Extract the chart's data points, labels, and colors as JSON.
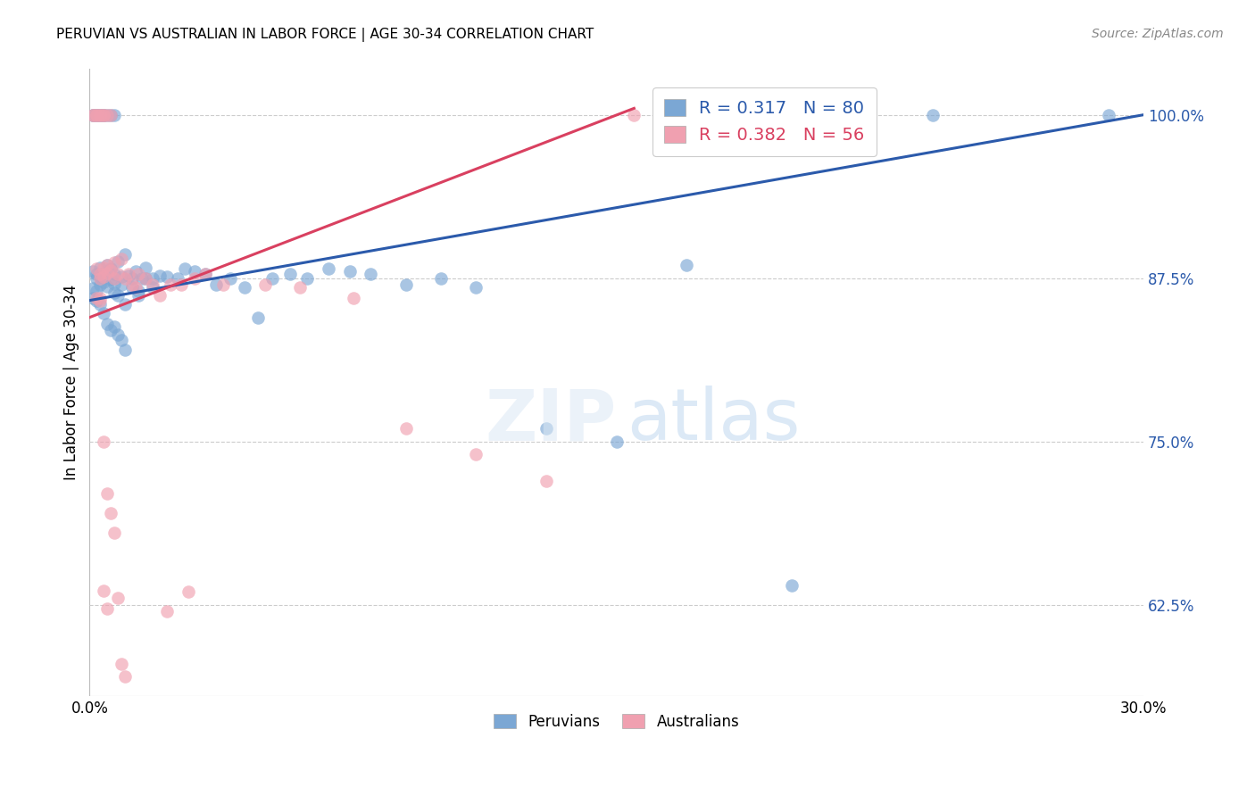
{
  "title": "PERUVIAN VS AUSTRALIAN IN LABOR FORCE | AGE 30-34 CORRELATION CHART",
  "source": "Source: ZipAtlas.com",
  "ylabel": "In Labor Force | Age 30-34",
  "blue_R": 0.317,
  "blue_N": 80,
  "pink_R": 0.382,
  "pink_N": 56,
  "blue_color": "#7ba7d4",
  "pink_color": "#f0a0b0",
  "blue_line_color": "#2b5aab",
  "pink_line_color": "#d94060",
  "yticks": [
    0.625,
    0.75,
    0.875,
    1.0
  ],
  "ytick_labels": [
    "62.5%",
    "75.0%",
    "87.5%",
    "100.0%"
  ],
  "xlim": [
    0.0,
    0.3
  ],
  "ylim": [
    0.555,
    1.035
  ],
  "blue_line_x0": 0.0,
  "blue_line_y0": 0.858,
  "blue_line_x1": 0.3,
  "blue_line_y1": 1.0,
  "pink_line_x0": 0.0,
  "pink_line_y0": 0.845,
  "pink_line_x1": 0.155,
  "pink_line_y1": 1.005,
  "background_color": "#ffffff",
  "grid_color": "#cccccc",
  "blue_points_x": [
    0.001,
    0.001,
    0.001,
    0.002,
    0.002,
    0.002,
    0.002,
    0.003,
    0.003,
    0.003,
    0.003,
    0.003,
    0.004,
    0.004,
    0.004,
    0.004,
    0.005,
    0.005,
    0.005,
    0.006,
    0.006,
    0.006,
    0.007,
    0.007,
    0.007,
    0.007,
    0.008,
    0.008,
    0.009,
    0.009,
    0.01,
    0.01,
    0.011,
    0.012,
    0.013,
    0.014,
    0.015,
    0.016,
    0.018,
    0.02,
    0.022,
    0.025,
    0.027,
    0.03,
    0.033,
    0.036,
    0.04,
    0.044,
    0.048,
    0.052,
    0.057,
    0.062,
    0.068,
    0.074,
    0.08,
    0.09,
    0.1,
    0.11,
    0.13,
    0.15,
    0.001,
    0.001,
    0.002,
    0.002,
    0.003,
    0.004,
    0.005,
    0.006,
    0.007,
    0.008,
    0.009,
    0.01,
    0.24,
    0.29,
    0.17,
    0.2,
    0.012,
    0.014,
    0.016,
    0.018
  ],
  "blue_points_y": [
    1.0,
    1.0,
    0.88,
    1.0,
    1.0,
    0.878,
    0.875,
    1.0,
    1.0,
    0.883,
    0.876,
    0.87,
    1.0,
    1.0,
    0.879,
    0.872,
    1.0,
    0.885,
    0.869,
    1.0,
    0.882,
    0.874,
    1.0,
    0.878,
    0.871,
    0.864,
    0.888,
    0.862,
    0.876,
    0.87,
    0.893,
    0.855,
    0.877,
    0.868,
    0.88,
    0.862,
    0.875,
    0.883,
    0.868,
    0.877,
    0.876,
    0.875,
    0.882,
    0.88,
    0.878,
    0.87,
    0.875,
    0.868,
    0.845,
    0.875,
    0.878,
    0.875,
    0.882,
    0.88,
    0.878,
    0.87,
    0.875,
    0.868,
    0.76,
    0.75,
    0.867,
    0.86,
    0.865,
    0.858,
    0.855,
    0.848,
    0.84,
    0.835,
    0.838,
    0.832,
    0.828,
    0.82,
    1.0,
    1.0,
    0.885,
    0.64,
    0.875,
    0.865,
    0.875,
    0.875
  ],
  "pink_points_x": [
    0.001,
    0.001,
    0.002,
    0.002,
    0.002,
    0.003,
    0.003,
    0.003,
    0.003,
    0.004,
    0.004,
    0.004,
    0.004,
    0.005,
    0.005,
    0.005,
    0.006,
    0.006,
    0.007,
    0.007,
    0.008,
    0.009,
    0.01,
    0.011,
    0.012,
    0.013,
    0.014,
    0.016,
    0.018,
    0.02,
    0.023,
    0.026,
    0.03,
    0.033,
    0.038,
    0.05,
    0.06,
    0.075,
    0.09,
    0.11,
    0.13,
    0.155,
    0.002,
    0.003,
    0.003,
    0.004,
    0.005,
    0.006,
    0.007,
    0.008,
    0.009,
    0.01,
    0.004,
    0.005,
    0.022,
    0.028
  ],
  "pink_points_y": [
    1.0,
    1.0,
    1.0,
    1.0,
    0.882,
    1.0,
    1.0,
    0.878,
    0.875,
    1.0,
    1.0,
    0.883,
    0.876,
    1.0,
    0.885,
    0.879,
    1.0,
    0.881,
    0.887,
    0.875,
    0.878,
    0.89,
    0.875,
    0.878,
    0.87,
    0.868,
    0.878,
    0.875,
    0.87,
    0.862,
    0.87,
    0.87,
    0.875,
    0.878,
    0.87,
    0.87,
    0.868,
    0.86,
    0.76,
    0.74,
    0.72,
    1.0,
    0.86,
    0.86,
    0.858,
    0.75,
    0.71,
    0.695,
    0.68,
    0.63,
    0.58,
    0.57,
    0.636,
    0.622,
    0.62,
    0.635
  ]
}
